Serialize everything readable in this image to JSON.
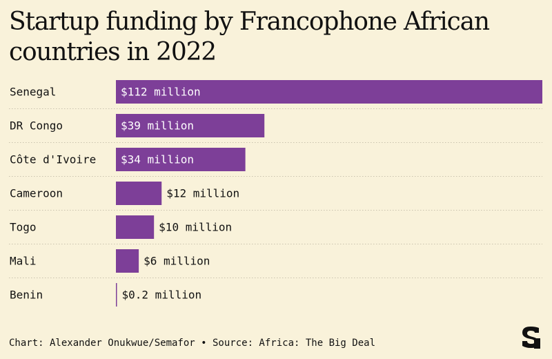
{
  "title": "Startup funding by Francophone African countries in 2022",
  "footer": {
    "credit": "Chart: Alexander Onukwue/Semafor • Source: Africa: The Big Deal"
  },
  "brand": {
    "logo_text": "S",
    "icon": "semafor-logo-icon"
  },
  "colors": {
    "background": "#f9f2da",
    "bar": "#7d3f98",
    "grid": "#c9c2ad",
    "text": "#111111",
    "bar_text": "#ffffff"
  },
  "chart_data": {
    "type": "bar",
    "orientation": "horizontal",
    "title": "Startup funding by Francophone African countries in 2022",
    "xlabel": "",
    "ylabel": "",
    "unit": "million USD",
    "xlim": [
      0,
      112
    ],
    "grid": false,
    "legend": "none",
    "categories": [
      "Senegal",
      "DR Congo",
      "Côte d'Ivoire",
      "Cameroon",
      "Togo",
      "Mali",
      "Benin"
    ],
    "values": [
      112,
      39,
      34,
      12,
      10,
      6,
      0.2
    ],
    "data_labels": [
      "$112 million",
      "$39 million",
      "$34 million",
      "$12 million",
      "$10 million",
      "$6 million",
      "$0.2 million"
    ]
  }
}
